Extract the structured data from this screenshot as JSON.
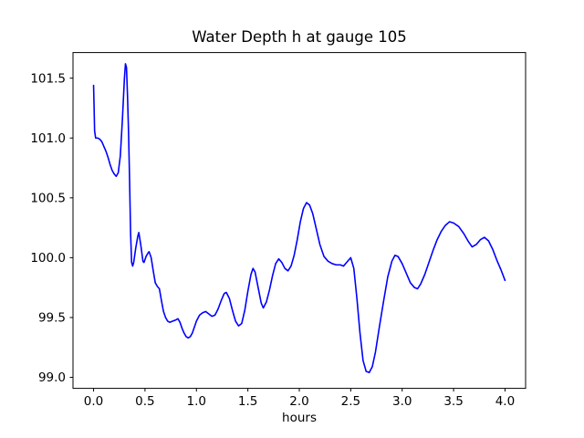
{
  "figure": {
    "background": "#ffffff",
    "text_color": "#000000",
    "spine_color": "#000000"
  },
  "chart_data": {
    "type": "line",
    "title": "Water Depth h at gauge 105",
    "xlabel": "hours",
    "ylabel": "",
    "grid": false,
    "legend": null,
    "line_color": "#0000ff",
    "xlim": [
      -0.2,
      4.2
    ],
    "ylim": [
      98.908,
      101.714
    ],
    "xticks": [
      0.0,
      0.5,
      1.0,
      1.5,
      2.0,
      2.5,
      3.0,
      3.5,
      4.0
    ],
    "xtick_labels": [
      "0.0",
      "0.5",
      "1.0",
      "1.5",
      "2.0",
      "2.5",
      "3.0",
      "3.5",
      "4.0"
    ],
    "yticks": [
      99.0,
      99.5,
      100.0,
      100.5,
      101.0,
      101.5
    ],
    "ytick_labels": [
      "99.0",
      "99.5",
      "100.0",
      "100.5",
      "101.0",
      "101.5"
    ],
    "series": [
      {
        "name": "h",
        "points": [
          [
            0.0,
            101.44
          ],
          [
            0.005,
            101.26
          ],
          [
            0.01,
            101.06
          ],
          [
            0.02,
            101.0
          ],
          [
            0.04,
            101.0
          ],
          [
            0.06,
            100.99
          ],
          [
            0.08,
            100.97
          ],
          [
            0.1,
            100.93
          ],
          [
            0.12,
            100.89
          ],
          [
            0.14,
            100.84
          ],
          [
            0.16,
            100.78
          ],
          [
            0.18,
            100.73
          ],
          [
            0.2,
            100.7
          ],
          [
            0.22,
            100.68
          ],
          [
            0.24,
            100.71
          ],
          [
            0.26,
            100.85
          ],
          [
            0.28,
            101.15
          ],
          [
            0.3,
            101.5
          ],
          [
            0.31,
            101.62
          ],
          [
            0.32,
            101.59
          ],
          [
            0.33,
            101.35
          ],
          [
            0.34,
            101.05
          ],
          [
            0.35,
            100.65
          ],
          [
            0.36,
            100.2
          ],
          [
            0.37,
            99.96
          ],
          [
            0.38,
            99.93
          ],
          [
            0.39,
            99.96
          ],
          [
            0.41,
            100.08
          ],
          [
            0.43,
            100.18
          ],
          [
            0.44,
            100.21
          ],
          [
            0.46,
            100.1
          ],
          [
            0.48,
            99.97
          ],
          [
            0.49,
            99.96
          ],
          [
            0.51,
            100.01
          ],
          [
            0.53,
            100.04
          ],
          [
            0.54,
            100.05
          ],
          [
            0.56,
            100.0
          ],
          [
            0.58,
            99.89
          ],
          [
            0.6,
            99.79
          ],
          [
            0.62,
            99.76
          ],
          [
            0.64,
            99.74
          ],
          [
            0.66,
            99.64
          ],
          [
            0.68,
            99.55
          ],
          [
            0.7,
            99.5
          ],
          [
            0.72,
            99.47
          ],
          [
            0.74,
            99.46
          ],
          [
            0.77,
            99.47
          ],
          [
            0.8,
            99.48
          ],
          [
            0.82,
            99.49
          ],
          [
            0.84,
            99.46
          ],
          [
            0.86,
            99.41
          ],
          [
            0.88,
            99.37
          ],
          [
            0.9,
            99.34
          ],
          [
            0.92,
            99.33
          ],
          [
            0.94,
            99.34
          ],
          [
            0.96,
            99.37
          ],
          [
            0.98,
            99.42
          ],
          [
            1.0,
            99.47
          ],
          [
            1.03,
            99.52
          ],
          [
            1.06,
            99.54
          ],
          [
            1.09,
            99.55
          ],
          [
            1.12,
            99.53
          ],
          [
            1.15,
            99.51
          ],
          [
            1.18,
            99.52
          ],
          [
            1.21,
            99.57
          ],
          [
            1.24,
            99.64
          ],
          [
            1.27,
            99.7
          ],
          [
            1.29,
            99.71
          ],
          [
            1.32,
            99.66
          ],
          [
            1.35,
            99.56
          ],
          [
            1.38,
            99.47
          ],
          [
            1.41,
            99.43
          ],
          [
            1.44,
            99.45
          ],
          [
            1.47,
            99.56
          ],
          [
            1.5,
            99.72
          ],
          [
            1.53,
            99.86
          ],
          [
            1.55,
            99.91
          ],
          [
            1.57,
            99.88
          ],
          [
            1.6,
            99.75
          ],
          [
            1.63,
            99.62
          ],
          [
            1.65,
            99.58
          ],
          [
            1.68,
            99.63
          ],
          [
            1.71,
            99.73
          ],
          [
            1.74,
            99.85
          ],
          [
            1.77,
            99.95
          ],
          [
            1.8,
            99.99
          ],
          [
            1.83,
            99.96
          ],
          [
            1.86,
            99.91
          ],
          [
            1.89,
            99.89
          ],
          [
            1.92,
            99.93
          ],
          [
            1.95,
            100.02
          ],
          [
            1.98,
            100.15
          ],
          [
            2.01,
            100.3
          ],
          [
            2.04,
            100.41
          ],
          [
            2.07,
            100.46
          ],
          [
            2.1,
            100.44
          ],
          [
            2.13,
            100.37
          ],
          [
            2.16,
            100.26
          ],
          [
            2.2,
            100.11
          ],
          [
            2.24,
            100.01
          ],
          [
            2.28,
            99.97
          ],
          [
            2.32,
            99.95
          ],
          [
            2.36,
            99.94
          ],
          [
            2.4,
            99.94
          ],
          [
            2.43,
            99.93
          ],
          [
            2.46,
            99.96
          ],
          [
            2.5,
            100.0
          ],
          [
            2.53,
            99.91
          ],
          [
            2.56,
            99.66
          ],
          [
            2.59,
            99.37
          ],
          [
            2.62,
            99.14
          ],
          [
            2.65,
            99.05
          ],
          [
            2.68,
            99.04
          ],
          [
            2.71,
            99.09
          ],
          [
            2.74,
            99.21
          ],
          [
            2.78,
            99.43
          ],
          [
            2.82,
            99.64
          ],
          [
            2.86,
            99.84
          ],
          [
            2.9,
            99.97
          ],
          [
            2.93,
            100.02
          ],
          [
            2.96,
            100.01
          ],
          [
            3.0,
            99.95
          ],
          [
            3.04,
            99.87
          ],
          [
            3.08,
            99.79
          ],
          [
            3.12,
            99.75
          ],
          [
            3.15,
            99.74
          ],
          [
            3.18,
            99.78
          ],
          [
            3.22,
            99.86
          ],
          [
            3.26,
            99.96
          ],
          [
            3.3,
            100.06
          ],
          [
            3.34,
            100.15
          ],
          [
            3.38,
            100.22
          ],
          [
            3.42,
            100.27
          ],
          [
            3.46,
            100.3
          ],
          [
            3.5,
            100.29
          ],
          [
            3.55,
            100.26
          ],
          [
            3.6,
            100.2
          ],
          [
            3.64,
            100.14
          ],
          [
            3.68,
            100.09
          ],
          [
            3.72,
            100.11
          ],
          [
            3.76,
            100.15
          ],
          [
            3.8,
            100.17
          ],
          [
            3.84,
            100.14
          ],
          [
            3.88,
            100.07
          ],
          [
            3.92,
            99.98
          ],
          [
            3.96,
            99.9
          ],
          [
            4.0,
            99.81
          ]
        ]
      }
    ]
  }
}
